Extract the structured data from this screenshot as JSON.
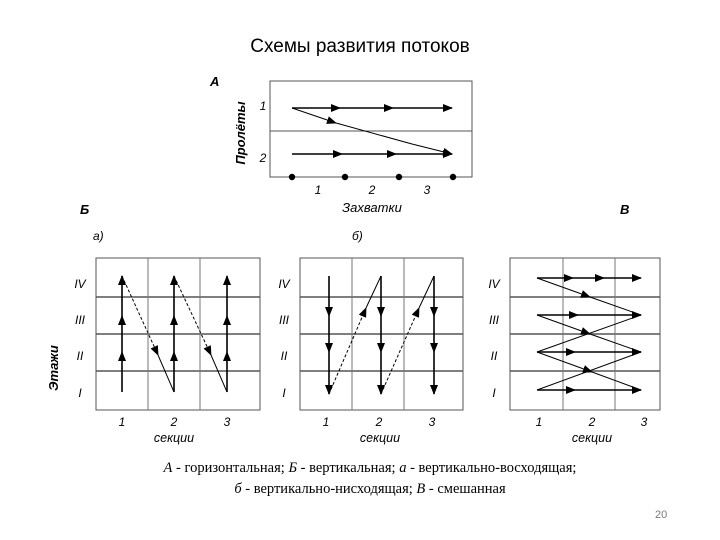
{
  "title": "Схемы развития потоков",
  "diagram_a": {
    "label": "А",
    "y_axis_label": "Пролёты",
    "rows": [
      "1",
      "2"
    ],
    "x_ticks": [
      "1",
      "2",
      "3"
    ],
    "x_axis_label": "Захватки"
  },
  "diagram_b": {
    "label": "Б",
    "panel_a": "а)",
    "panel_b": "б)",
    "y_axis_label": "Этажи",
    "floors": [
      "IV",
      "III",
      "II",
      "I"
    ],
    "sections": [
      "1",
      "2",
      "3"
    ],
    "x_axis_label": "секции"
  },
  "diagram_v": {
    "label": "В",
    "floors": [
      "IV",
      "III",
      "II",
      "I"
    ],
    "sections": [
      "1",
      "2",
      "3"
    ],
    "x_axis_label": "секции"
  },
  "caption": {
    "a_sym": "А",
    "a_text": " - горизонтальная; ",
    "b_sym": "Б",
    "b_text": " - вертикальная; ",
    "alpha_sym": "а",
    "alpha_text": " - вертикально-восходящая;",
    "beta_sym": "б",
    "beta_text": " - вертикально-нисходящая; ",
    "v_sym": "В",
    "v_text": " - смешанная"
  },
  "page_number": "20"
}
